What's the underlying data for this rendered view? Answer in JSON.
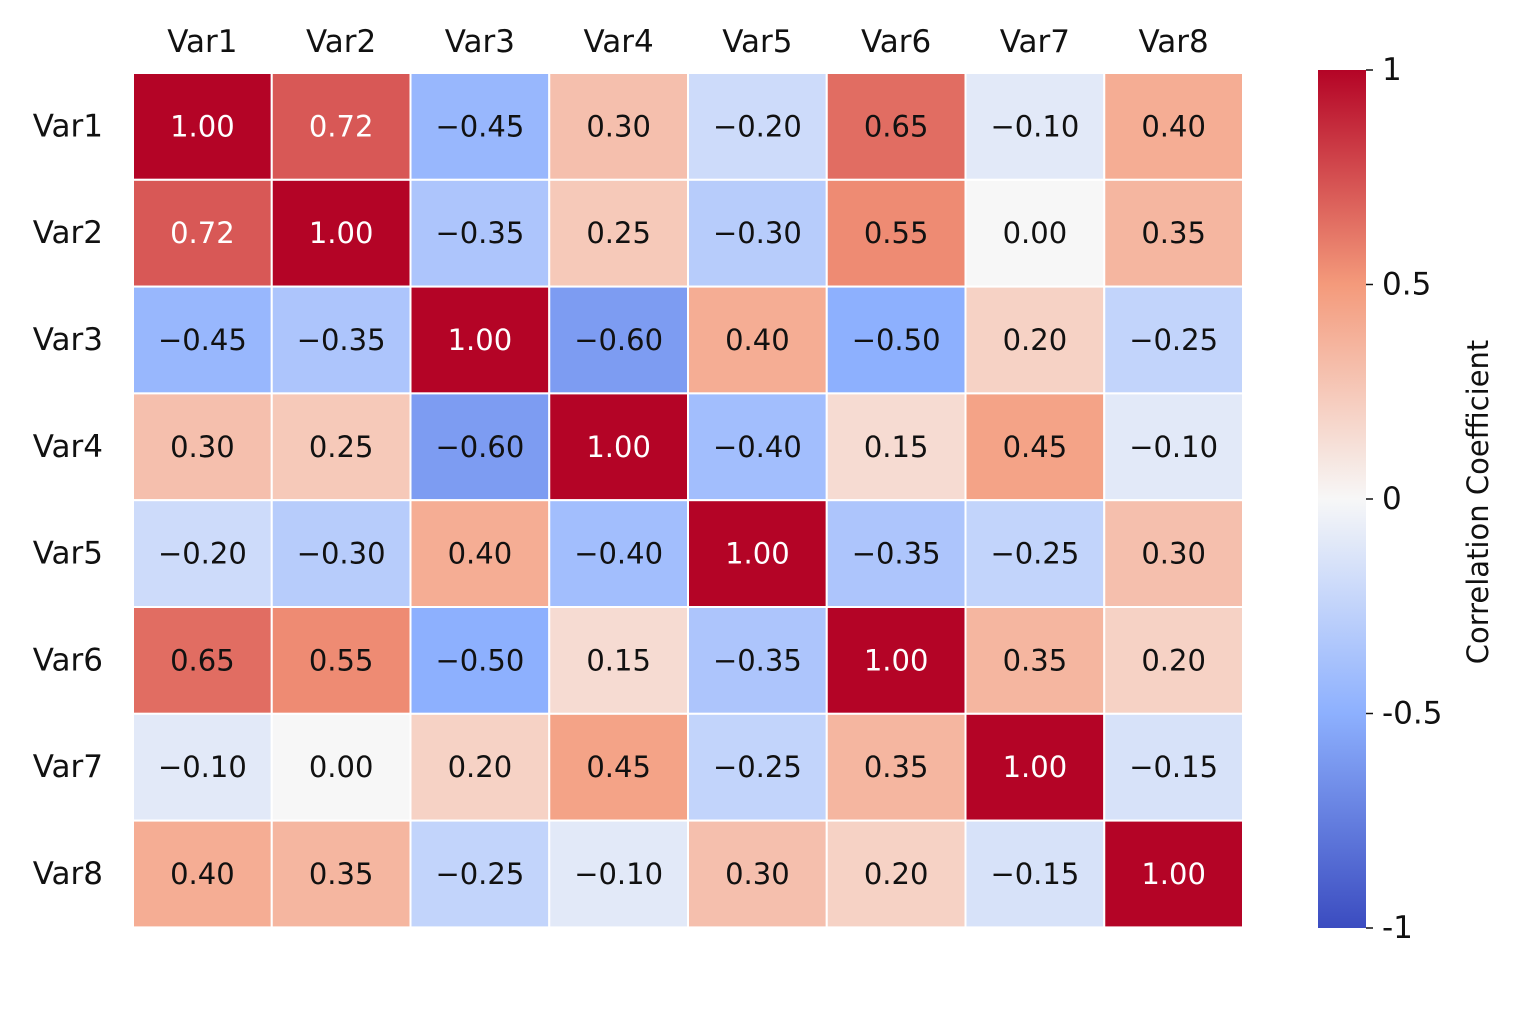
{
  "chart_data": {
    "type": "heatmap",
    "title": "",
    "xlabel": "",
    "ylabel": "",
    "x_categories": [
      "Var1",
      "Var2",
      "Var3",
      "Var4",
      "Var5",
      "Var6",
      "Var7",
      "Var8"
    ],
    "y_categories": [
      "Var1",
      "Var2",
      "Var3",
      "Var4",
      "Var5",
      "Var6",
      "Var7",
      "Var8"
    ],
    "values": [
      [
        1.0,
        0.72,
        -0.45,
        0.3,
        -0.2,
        0.65,
        -0.1,
        0.4
      ],
      [
        0.72,
        1.0,
        -0.35,
        0.25,
        -0.3,
        0.55,
        0.0,
        0.35
      ],
      [
        -0.45,
        -0.35,
        1.0,
        -0.6,
        0.4,
        -0.5,
        0.2,
        -0.25
      ],
      [
        0.3,
        0.25,
        -0.6,
        1.0,
        -0.4,
        0.15,
        0.45,
        -0.1
      ],
      [
        -0.2,
        -0.3,
        0.4,
        -0.4,
        1.0,
        -0.35,
        -0.25,
        0.3
      ],
      [
        0.65,
        0.55,
        -0.5,
        0.15,
        -0.35,
        1.0,
        0.35,
        0.2
      ],
      [
        -0.1,
        0.0,
        0.2,
        0.45,
        -0.25,
        0.35,
        1.0,
        -0.15
      ],
      [
        0.4,
        0.35,
        -0.25,
        -0.1,
        0.3,
        0.2,
        -0.15,
        1.0
      ]
    ],
    "value_format": "0.00",
    "colormap": "coolwarm",
    "vmin": -1,
    "vmax": 1,
    "colorbar": {
      "label": "Correlation Coefficient",
      "ticks": [
        1,
        0.5,
        0,
        -0.5,
        -1
      ],
      "tick_labels": [
        "1",
        "0.5",
        "0",
        "-0.5",
        "-1"
      ],
      "position": "right"
    },
    "x_tick_position": "top",
    "grid_line_color": "#ffffff"
  }
}
